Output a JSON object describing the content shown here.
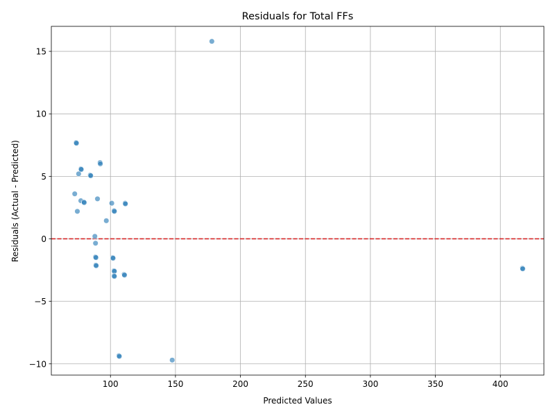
{
  "chart_data": {
    "type": "scatter",
    "title": "Residuals for Total FFs",
    "xlabel": "Predicted Values",
    "ylabel": "Residuals (Actual - Predicted)",
    "xlim": [
      54.5,
      433.5
    ],
    "ylim": [
      -10.9,
      17.0
    ],
    "xticks": [
      100,
      150,
      200,
      250,
      300,
      350,
      400
    ],
    "yticks": [
      -10,
      -5,
      0,
      5,
      10,
      15
    ],
    "grid": true,
    "reference_line": {
      "y": 0,
      "color": "#d62728",
      "style": "dashed"
    },
    "marker_color": "#1f77b4",
    "points": [
      {
        "x": 178,
        "y": 15.8
      },
      {
        "x": 73.6,
        "y": 7.7
      },
      {
        "x": 73.8,
        "y": 7.65
      },
      {
        "x": 92,
        "y": 6.1
      },
      {
        "x": 92.2,
        "y": 6.0
      },
      {
        "x": 77.3,
        "y": 5.6
      },
      {
        "x": 77.5,
        "y": 5.55
      },
      {
        "x": 75.5,
        "y": 5.2
      },
      {
        "x": 84.5,
        "y": 5.1
      },
      {
        "x": 84.8,
        "y": 5.05
      },
      {
        "x": 72.5,
        "y": 3.6
      },
      {
        "x": 90,
        "y": 3.2
      },
      {
        "x": 77.2,
        "y": 3.05
      },
      {
        "x": 79.5,
        "y": 2.95
      },
      {
        "x": 79.8,
        "y": 2.9
      },
      {
        "x": 101,
        "y": 2.85
      },
      {
        "x": 111.3,
        "y": 2.85
      },
      {
        "x": 111.5,
        "y": 2.8
      },
      {
        "x": 74.5,
        "y": 2.2
      },
      {
        "x": 102.8,
        "y": 2.25
      },
      {
        "x": 103,
        "y": 2.2
      },
      {
        "x": 96.8,
        "y": 1.45
      },
      {
        "x": 88,
        "y": 0.2
      },
      {
        "x": 88.5,
        "y": -0.35
      },
      {
        "x": 88.5,
        "y": -1.45
      },
      {
        "x": 88.8,
        "y": -1.5
      },
      {
        "x": 101.8,
        "y": -1.5
      },
      {
        "x": 102,
        "y": -1.55
      },
      {
        "x": 88.8,
        "y": -2.1
      },
      {
        "x": 89,
        "y": -2.15
      },
      {
        "x": 417,
        "y": -2.35
      },
      {
        "x": 417.2,
        "y": -2.4
      },
      {
        "x": 102.8,
        "y": -2.55
      },
      {
        "x": 103,
        "y": -2.6
      },
      {
        "x": 110.5,
        "y": -2.85
      },
      {
        "x": 110.8,
        "y": -2.9
      },
      {
        "x": 102.8,
        "y": -2.95
      },
      {
        "x": 103,
        "y": -3.0
      },
      {
        "x": 106.5,
        "y": -9.35
      },
      {
        "x": 106.8,
        "y": -9.4
      },
      {
        "x": 147.5,
        "y": -9.7
      }
    ]
  }
}
